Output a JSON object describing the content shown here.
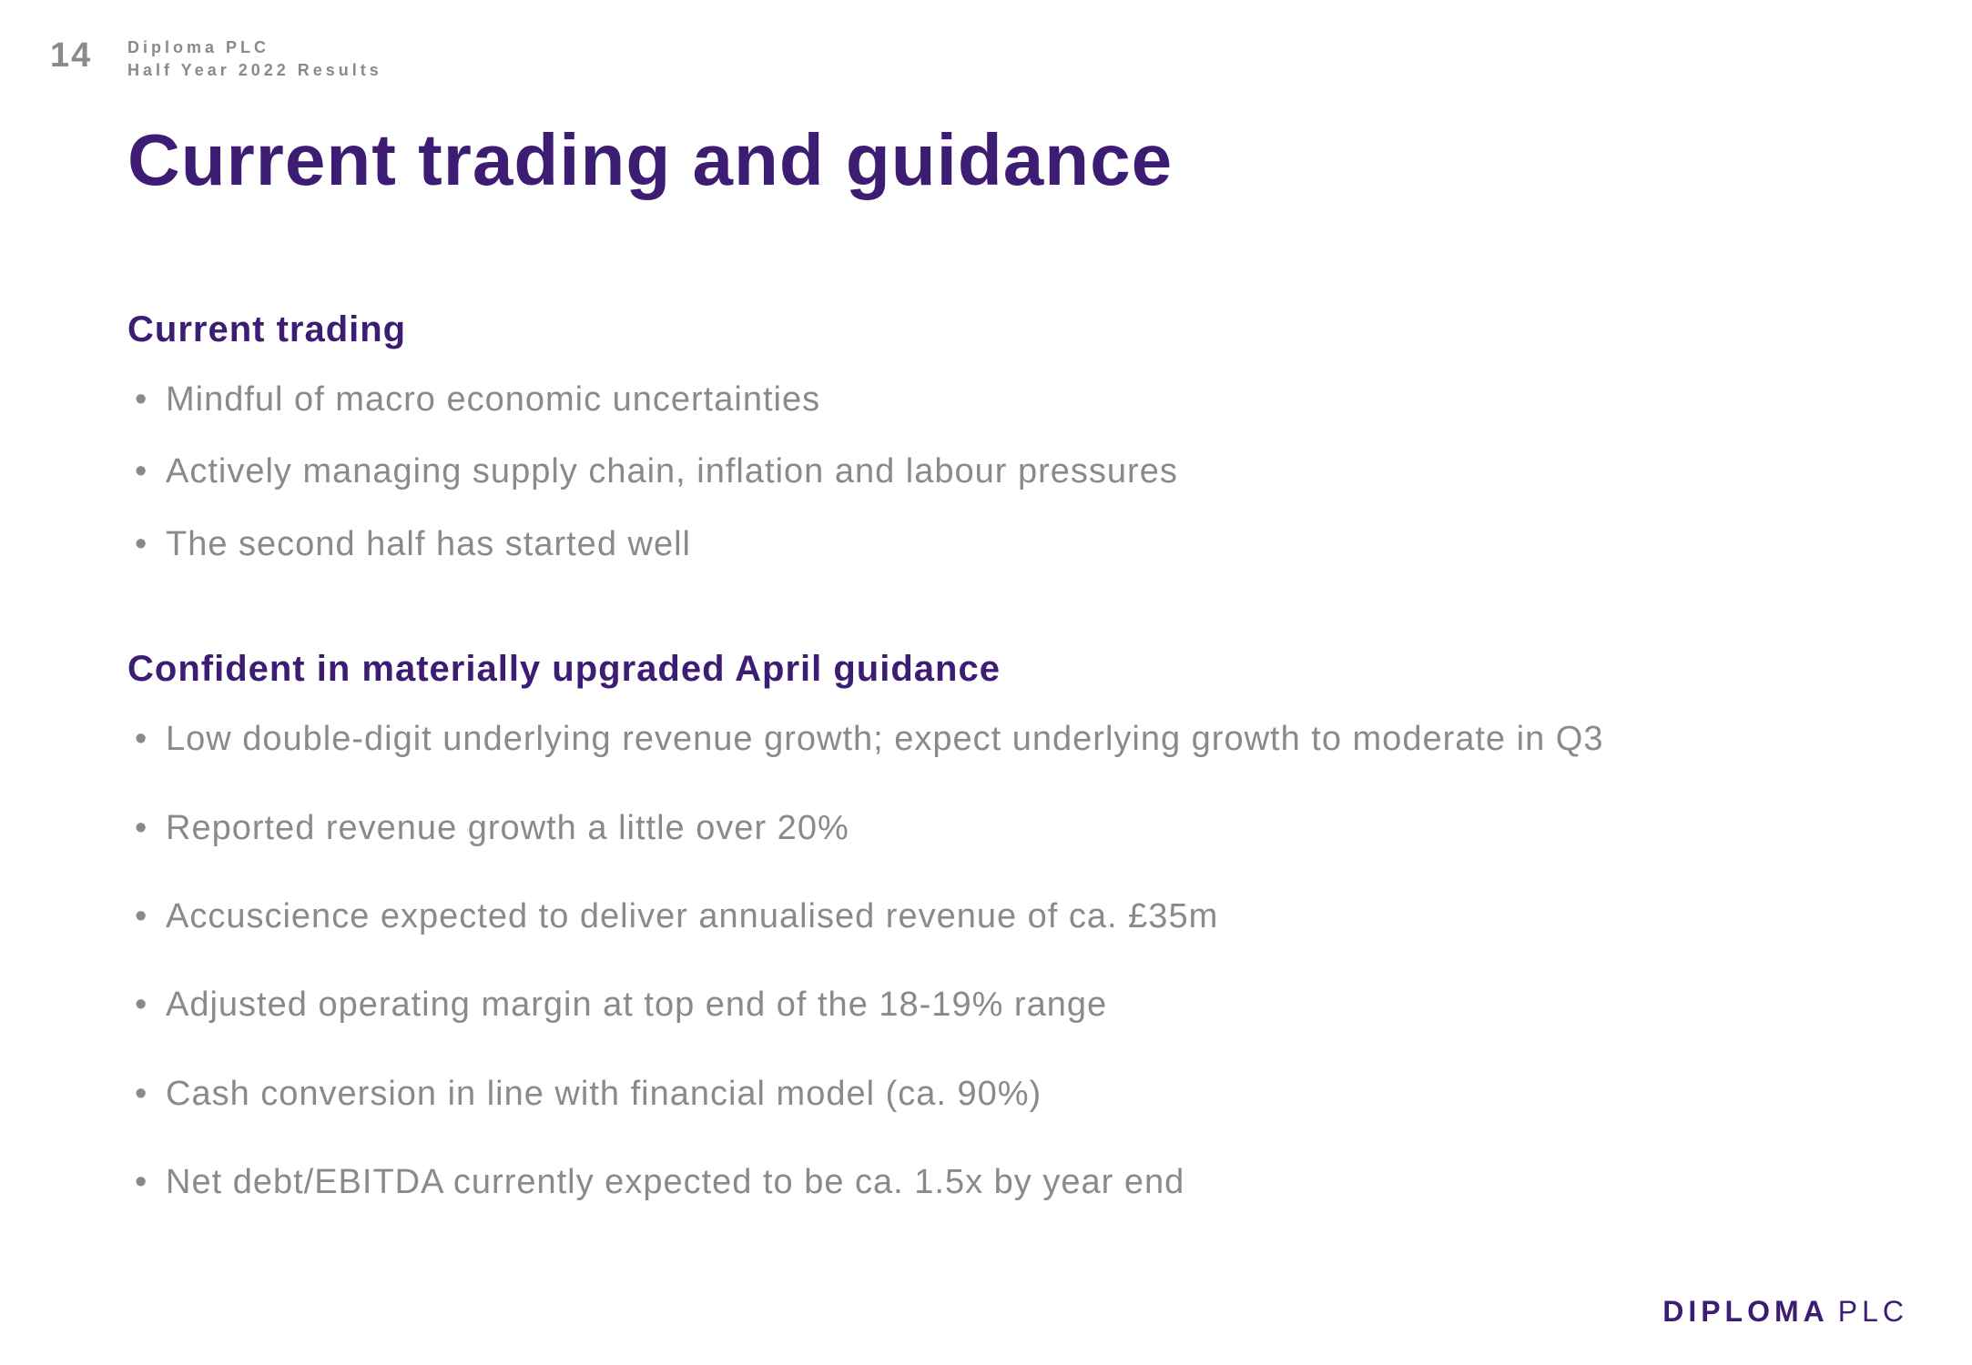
{
  "page_number": "14",
  "header": {
    "company": "Diploma PLC",
    "report": "Half Year 2022 Results"
  },
  "title": "Current trading and guidance",
  "section1": {
    "heading": "Current trading",
    "bullets": [
      "Mindful of macro economic uncertainties",
      "Actively managing supply chain, inflation and labour pressures",
      "The second half has started well"
    ]
  },
  "section2": {
    "heading": "Confident in materially upgraded April guidance",
    "bullets": [
      "Low double-digit underlying revenue growth; expect underlying growth to moderate in Q3",
      "Reported revenue growth a little over 20%",
      "Accuscience expected to deliver annualised revenue of ca. £35m",
      "Adjusted operating margin at top end of the 18-19% range",
      "Cash conversion in line with financial model (ca. 90%)",
      "Net debt/EBITDA currently expected to be ca. 1.5x by year end"
    ]
  },
  "footer": {
    "brand": "DIPLOMA",
    "suffix": "PLC"
  },
  "colors": {
    "brand_purple": "#3d1d74",
    "body_grey": "#8a8a8a",
    "background": "#ffffff"
  }
}
